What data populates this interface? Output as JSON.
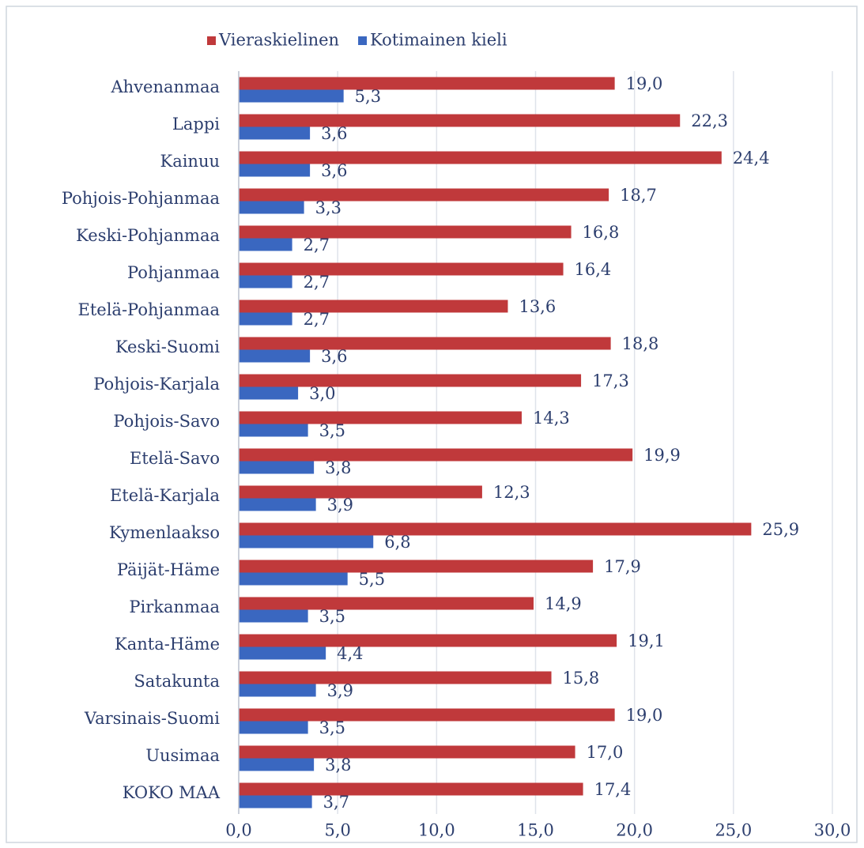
{
  "chart_data": {
    "type": "bar",
    "orientation": "horizontal",
    "categories": [
      "Ahvenanmaa",
      "Lappi",
      "Kainuu",
      "Pohjois-Pohjanmaa",
      "Keski-Pohjanmaa",
      "Pohjanmaa",
      "Etelä-Pohjanmaa",
      "Keski-Suomi",
      "Pohjois-Karjala",
      "Pohjois-Savo",
      "Etelä-Savo",
      "Etelä-Karjala",
      "Kymenlaakso",
      "Päijät-Häme",
      "Pirkanmaa",
      "Kanta-Häme",
      "Satakunta",
      "Varsinais-Suomi",
      "Uusimaa",
      "KOKO MAA"
    ],
    "series": [
      {
        "name": "Vieraskielinen",
        "color": "#c0393b",
        "values": [
          19.0,
          22.3,
          24.4,
          18.7,
          16.8,
          16.4,
          13.6,
          18.8,
          17.3,
          14.3,
          19.9,
          12.3,
          25.9,
          17.9,
          14.9,
          19.1,
          15.8,
          19.0,
          17.0,
          17.4
        ],
        "value_labels": [
          "19,0",
          "22,3",
          "24,4",
          "18,7",
          "16,8",
          "16,4",
          "13,6",
          "18,8",
          "17,3",
          "14,3",
          "19,9",
          "12,3",
          "25,9",
          "17,9",
          "14,9",
          "19,1",
          "15,8",
          "19,0",
          "17,0",
          "17,4"
        ]
      },
      {
        "name": "Kotimainen kieli",
        "color": "#3a67c0",
        "values": [
          5.3,
          3.6,
          3.6,
          3.3,
          2.7,
          2.7,
          2.7,
          3.6,
          3.0,
          3.5,
          3.8,
          3.9,
          6.8,
          5.5,
          3.5,
          4.4,
          3.9,
          3.5,
          3.8,
          3.7
        ],
        "value_labels": [
          "5,3",
          "3,6",
          "3,6",
          "3,3",
          "2,7",
          "2,7",
          "2,7",
          "3,6",
          "3,0",
          "3,5",
          "3,8",
          "3,9",
          "6,8",
          "5,5",
          "3,5",
          "4,4",
          "3,9",
          "3,5",
          "3,8",
          "3,7"
        ]
      }
    ],
    "xlim": [
      0,
      30
    ],
    "xticks": [
      {
        "value": 0,
        "label": "0,0"
      },
      {
        "value": 5,
        "label": "5,0"
      },
      {
        "value": 10,
        "label": "10,0"
      },
      {
        "value": 15,
        "label": "15,0"
      },
      {
        "value": 20,
        "label": "20,0"
      },
      {
        "value": 25,
        "label": "25,0"
      },
      {
        "value": 30,
        "label": "30,0"
      }
    ],
    "grid": true,
    "legend": "top"
  }
}
